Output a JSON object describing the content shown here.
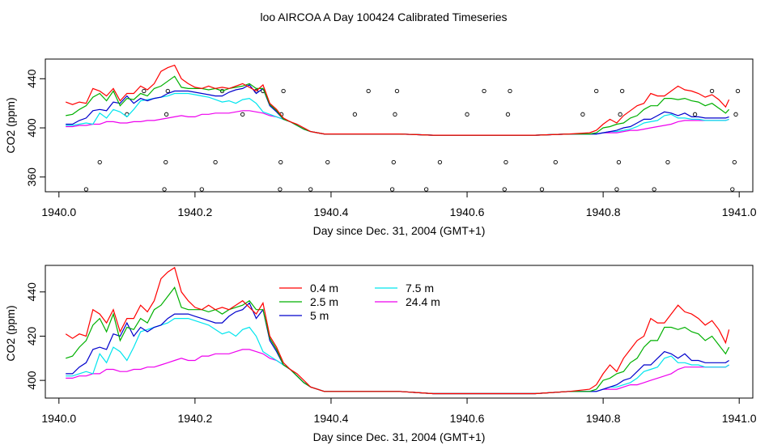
{
  "title": "loo AIRCOA A  Day 100424  Calibrated Timeseries",
  "chart_data": [
    {
      "type": "line+scatter",
      "panel": "top",
      "xlabel": "Day since Dec. 31, 2004 (GMT+1)",
      "ylabel": "CO2 (ppm)",
      "xlim": [
        1939.98,
        1941.02
      ],
      "ylim": [
        348,
        456
      ],
      "xticks": [
        1940.0,
        1940.2,
        1940.4,
        1940.6,
        1940.8,
        1941.0
      ],
      "xtick_labels": [
        "1940.0",
        "1940.2",
        "1940.4",
        "1940.6",
        "1940.8",
        "1941.0"
      ],
      "yticks": [
        360,
        400,
        440
      ],
      "ytick_labels": [
        "360",
        "400",
        "440"
      ],
      "grid": false,
      "points": {
        "marker": "open-circle",
        "x": [
          1940.04,
          1940.06,
          1940.1,
          1940.125,
          1940.155,
          1940.157,
          1940.158,
          1940.16,
          1940.21,
          1940.23,
          1940.24,
          1940.27,
          1940.29,
          1940.3,
          1940.325,
          1940.326,
          1940.327,
          1940.33,
          1940.37,
          1940.395,
          1940.435,
          1940.455,
          1940.49,
          1940.492,
          1940.494,
          1940.497,
          1940.54,
          1940.56,
          1940.6,
          1940.625,
          1940.655,
          1940.657,
          1940.66,
          1940.663,
          1940.71,
          1940.73,
          1940.77,
          1940.79,
          1940.82,
          1940.823,
          1940.825,
          1940.828,
          1940.875,
          1940.895,
          1940.935,
          1940.96,
          1940.99,
          1940.993,
          1940.995,
          1940.998
        ],
        "y": [
          350,
          372,
          411,
          430,
          350,
          372,
          411,
          430,
          350,
          372,
          430,
          411,
          430,
          430,
          350,
          372,
          411,
          430,
          350,
          372,
          411,
          430,
          350,
          372,
          411,
          430,
          350,
          372,
          411,
          430,
          350,
          372,
          411,
          430,
          350,
          372,
          411,
          430,
          350,
          372,
          411,
          430,
          350,
          372,
          411,
          430,
          350,
          372,
          411,
          430
        ]
      },
      "series": [
        {
          "name": "0.4 m",
          "color": "#ff0000",
          "x": [
            1940.01,
            1940.02,
            1940.03,
            1940.04,
            1940.05,
            1940.06,
            1940.07,
            1940.08,
            1940.09,
            1940.1,
            1940.11,
            1940.12,
            1940.13,
            1940.14,
            1940.15,
            1940.16,
            1940.17,
            1940.18,
            1940.19,
            1940.2,
            1940.21,
            1940.22,
            1940.23,
            1940.24,
            1940.25,
            1940.26,
            1940.27,
            1940.28,
            1940.29,
            1940.3,
            1940.31,
            1940.32,
            1940.33,
            1940.34,
            1940.35,
            1940.36,
            1940.37,
            1940.38,
            1940.39,
            1940.4,
            1940.42,
            1940.45,
            1940.5,
            1940.55,
            1940.6,
            1940.65,
            1940.7,
            1940.75,
            1940.78,
            1940.79,
            1940.8,
            1940.81,
            1940.82,
            1940.83,
            1940.84,
            1940.85,
            1940.86,
            1940.87,
            1940.88,
            1940.89,
            1940.9,
            1940.91,
            1940.92,
            1940.93,
            1940.94,
            1940.95,
            1940.96,
            1940.97,
            1940.98,
            1940.985
          ],
          "y": [
            421,
            419,
            421,
            420,
            432,
            430,
            426,
            432,
            422,
            428,
            428,
            434,
            431,
            436,
            446,
            449,
            451,
            440,
            436,
            433,
            432,
            434,
            432,
            433,
            432,
            434,
            436,
            433,
            430,
            435,
            420,
            415,
            408,
            405,
            403,
            400,
            397,
            396,
            395,
            395,
            395,
            395,
            395,
            394,
            394,
            394,
            394,
            395,
            396,
            398,
            403,
            407,
            404,
            410,
            414,
            418,
            420,
            428,
            426,
            426,
            430,
            434,
            431,
            430,
            428,
            425,
            427,
            423,
            417,
            423
          ]
        },
        {
          "name": "2.5 m",
          "color": "#00b000",
          "x": [
            1940.01,
            1940.02,
            1940.03,
            1940.04,
            1940.05,
            1940.06,
            1940.07,
            1940.08,
            1940.09,
            1940.1,
            1940.11,
            1940.12,
            1940.13,
            1940.14,
            1940.15,
            1940.16,
            1940.17,
            1940.18,
            1940.19,
            1940.2,
            1940.21,
            1940.22,
            1940.23,
            1940.24,
            1940.25,
            1940.26,
            1940.27,
            1940.28,
            1940.29,
            1940.3,
            1940.31,
            1940.32,
            1940.33,
            1940.34,
            1940.35,
            1940.36,
            1940.37,
            1940.38,
            1940.39,
            1940.4,
            1940.42,
            1940.45,
            1940.5,
            1940.55,
            1940.6,
            1940.65,
            1940.7,
            1940.75,
            1940.78,
            1940.79,
            1940.8,
            1940.81,
            1940.82,
            1940.83,
            1940.84,
            1940.85,
            1940.86,
            1940.87,
            1940.88,
            1940.89,
            1940.9,
            1940.91,
            1940.92,
            1940.93,
            1940.94,
            1940.95,
            1940.96,
            1940.97,
            1940.98,
            1940.985
          ],
          "y": [
            410,
            411,
            415,
            418,
            425,
            428,
            422,
            430,
            418,
            424,
            423,
            428,
            426,
            432,
            434,
            438,
            442,
            433,
            432,
            432,
            432,
            431,
            432,
            430,
            432,
            433,
            434,
            436,
            432,
            432,
            419,
            414,
            407,
            405,
            402,
            399,
            397,
            396,
            395,
            395,
            395,
            395,
            395,
            394,
            394,
            394,
            394,
            395,
            395,
            396,
            400,
            401,
            403,
            404,
            408,
            410,
            415,
            418,
            418,
            424,
            424,
            423,
            424,
            422,
            421,
            418,
            420,
            416,
            412,
            415
          ]
        },
        {
          "name": "5 m",
          "color": "#0000cc",
          "x": [
            1940.01,
            1940.02,
            1940.03,
            1940.04,
            1940.05,
            1940.06,
            1940.07,
            1940.08,
            1940.09,
            1940.1,
            1940.11,
            1940.12,
            1940.13,
            1940.14,
            1940.15,
            1940.16,
            1940.17,
            1940.18,
            1940.19,
            1940.2,
            1940.21,
            1940.22,
            1940.23,
            1940.24,
            1940.25,
            1940.26,
            1940.27,
            1940.28,
            1940.29,
            1940.3,
            1940.31,
            1940.32,
            1940.33,
            1940.34,
            1940.35,
            1940.36,
            1940.37,
            1940.38,
            1940.39,
            1940.4,
            1940.42,
            1940.45,
            1940.5,
            1940.55,
            1940.6,
            1940.65,
            1940.7,
            1940.75,
            1940.78,
            1940.79,
            1940.8,
            1940.81,
            1940.82,
            1940.83,
            1940.84,
            1940.85,
            1940.86,
            1940.87,
            1940.88,
            1940.89,
            1940.9,
            1940.91,
            1940.92,
            1940.93,
            1940.94,
            1940.95,
            1940.96,
            1940.97,
            1940.98,
            1940.985
          ],
          "y": [
            403,
            403,
            406,
            408,
            414,
            415,
            414,
            421,
            420,
            426,
            420,
            424,
            422,
            424,
            425,
            428,
            430,
            430,
            430,
            429,
            428,
            427,
            426,
            426,
            429,
            431,
            432,
            435,
            428,
            432,
            418,
            413,
            407,
            405,
            402,
            399,
            397,
            396,
            395,
            395,
            395,
            395,
            395,
            394,
            394,
            394,
            394,
            395,
            395,
            395,
            396,
            397,
            398,
            400,
            401,
            404,
            407,
            407,
            410,
            413,
            412,
            410,
            412,
            409,
            409,
            408,
            408,
            408,
            408,
            409
          ]
        },
        {
          "name": "7.5 m",
          "color": "#00e5ee",
          "x": [
            1940.01,
            1940.02,
            1940.03,
            1940.04,
            1940.05,
            1940.06,
            1940.07,
            1940.08,
            1940.09,
            1940.1,
            1940.11,
            1940.12,
            1940.13,
            1940.14,
            1940.15,
            1940.16,
            1940.17,
            1940.18,
            1940.19,
            1940.2,
            1940.21,
            1940.22,
            1940.23,
            1940.24,
            1940.25,
            1940.26,
            1940.27,
            1940.28,
            1940.29,
            1940.3,
            1940.31,
            1940.32,
            1940.33,
            1940.34,
            1940.35,
            1940.36,
            1940.37,
            1940.38,
            1940.39,
            1940.4,
            1940.42,
            1940.45,
            1940.5,
            1940.55,
            1940.6,
            1940.65,
            1940.7,
            1940.75,
            1940.78,
            1940.79,
            1940.8,
            1940.81,
            1940.82,
            1940.83,
            1940.84,
            1940.85,
            1940.86,
            1940.87,
            1940.88,
            1940.89,
            1940.9,
            1940.91,
            1940.92,
            1940.93,
            1940.94,
            1940.95,
            1940.96,
            1940.97,
            1940.98,
            1940.985
          ],
          "y": [
            402,
            402,
            403,
            404,
            403,
            412,
            408,
            415,
            413,
            409,
            415,
            422,
            423,
            424,
            425,
            426,
            428,
            428,
            428,
            427,
            426,
            425,
            423,
            421,
            422,
            420,
            423,
            424,
            420,
            413,
            411,
            409,
            407,
            405,
            402,
            399,
            397,
            396,
            395,
            395,
            395,
            395,
            395,
            394,
            394,
            394,
            394,
            395,
            395,
            395,
            396,
            397,
            397,
            398,
            399,
            401,
            404,
            405,
            406,
            410,
            411,
            408,
            408,
            407,
            407,
            406,
            406,
            406,
            406,
            407
          ]
        },
        {
          "name": "24.4 m",
          "color": "#ee00ee",
          "x": [
            1940.01,
            1940.02,
            1940.03,
            1940.04,
            1940.05,
            1940.06,
            1940.07,
            1940.08,
            1940.09,
            1940.1,
            1940.11,
            1940.12,
            1940.13,
            1940.14,
            1940.15,
            1940.16,
            1940.17,
            1940.18,
            1940.19,
            1940.2,
            1940.21,
            1940.22,
            1940.23,
            1940.24,
            1940.25,
            1940.26,
            1940.27,
            1940.28,
            1940.29,
            1940.3,
            1940.31,
            1940.32,
            1940.33,
            1940.34,
            1940.35,
            1940.36,
            1940.37,
            1940.38,
            1940.39,
            1940.4,
            1940.42,
            1940.45,
            1940.5,
            1940.55,
            1940.6,
            1940.65,
            1940.7,
            1940.75,
            1940.78,
            1940.79,
            1940.8,
            1940.81,
            1940.82,
            1940.83,
            1940.84,
            1940.85,
            1940.86,
            1940.87,
            1940.88,
            1940.89,
            1940.9,
            1940.91,
            1940.92,
            1940.93,
            1940.94,
            1940.95,
            1940.96,
            1940.97,
            1940.98,
            1940.985
          ],
          "y": [
            401,
            401,
            402,
            402,
            403,
            403,
            405,
            405,
            404,
            404,
            405,
            405,
            406,
            406,
            407,
            408,
            409,
            410,
            409,
            409,
            411,
            411,
            412,
            412,
            412,
            413,
            414,
            414,
            413,
            412,
            410,
            409,
            407,
            405,
            402,
            399,
            397,
            396,
            395,
            395,
            395,
            395,
            395,
            394,
            394,
            394,
            394,
            395,
            395,
            395,
            396,
            396,
            396,
            397,
            398,
            398,
            399,
            400,
            401,
            402,
            403,
            405,
            406,
            406,
            406,
            406,
            406,
            406,
            406,
            407
          ]
        }
      ]
    },
    {
      "type": "line",
      "panel": "bottom",
      "xlabel": "Day since Dec. 31, 2004 (GMT+1)",
      "ylabel": "CO2 (ppm)",
      "xlim": [
        1939.98,
        1941.02
      ],
      "ylim": [
        392,
        452
      ],
      "xticks": [
        1940.0,
        1940.2,
        1940.4,
        1940.6,
        1940.8,
        1941.0
      ],
      "xtick_labels": [
        "1940.0",
        "1940.2",
        "1940.4",
        "1940.6",
        "1940.8",
        "1941.0"
      ],
      "yticks": [
        400,
        420,
        440
      ],
      "ytick_labels": [
        "400",
        "420",
        "440"
      ],
      "grid": false,
      "legend": {
        "placement": "top-center",
        "columns": [
          [
            "0.4 m",
            "2.5 m",
            "5 m"
          ],
          [
            "7.5 m",
            "24.4 m"
          ]
        ],
        "colors": {
          "0.4 m": "#ff0000",
          "2.5 m": "#00b000",
          "5 m": "#0000cc",
          "7.5 m": "#00e5ee",
          "24.4 m": "#ee00ee"
        }
      },
      "series_ref": "same series as top panel"
    }
  ]
}
